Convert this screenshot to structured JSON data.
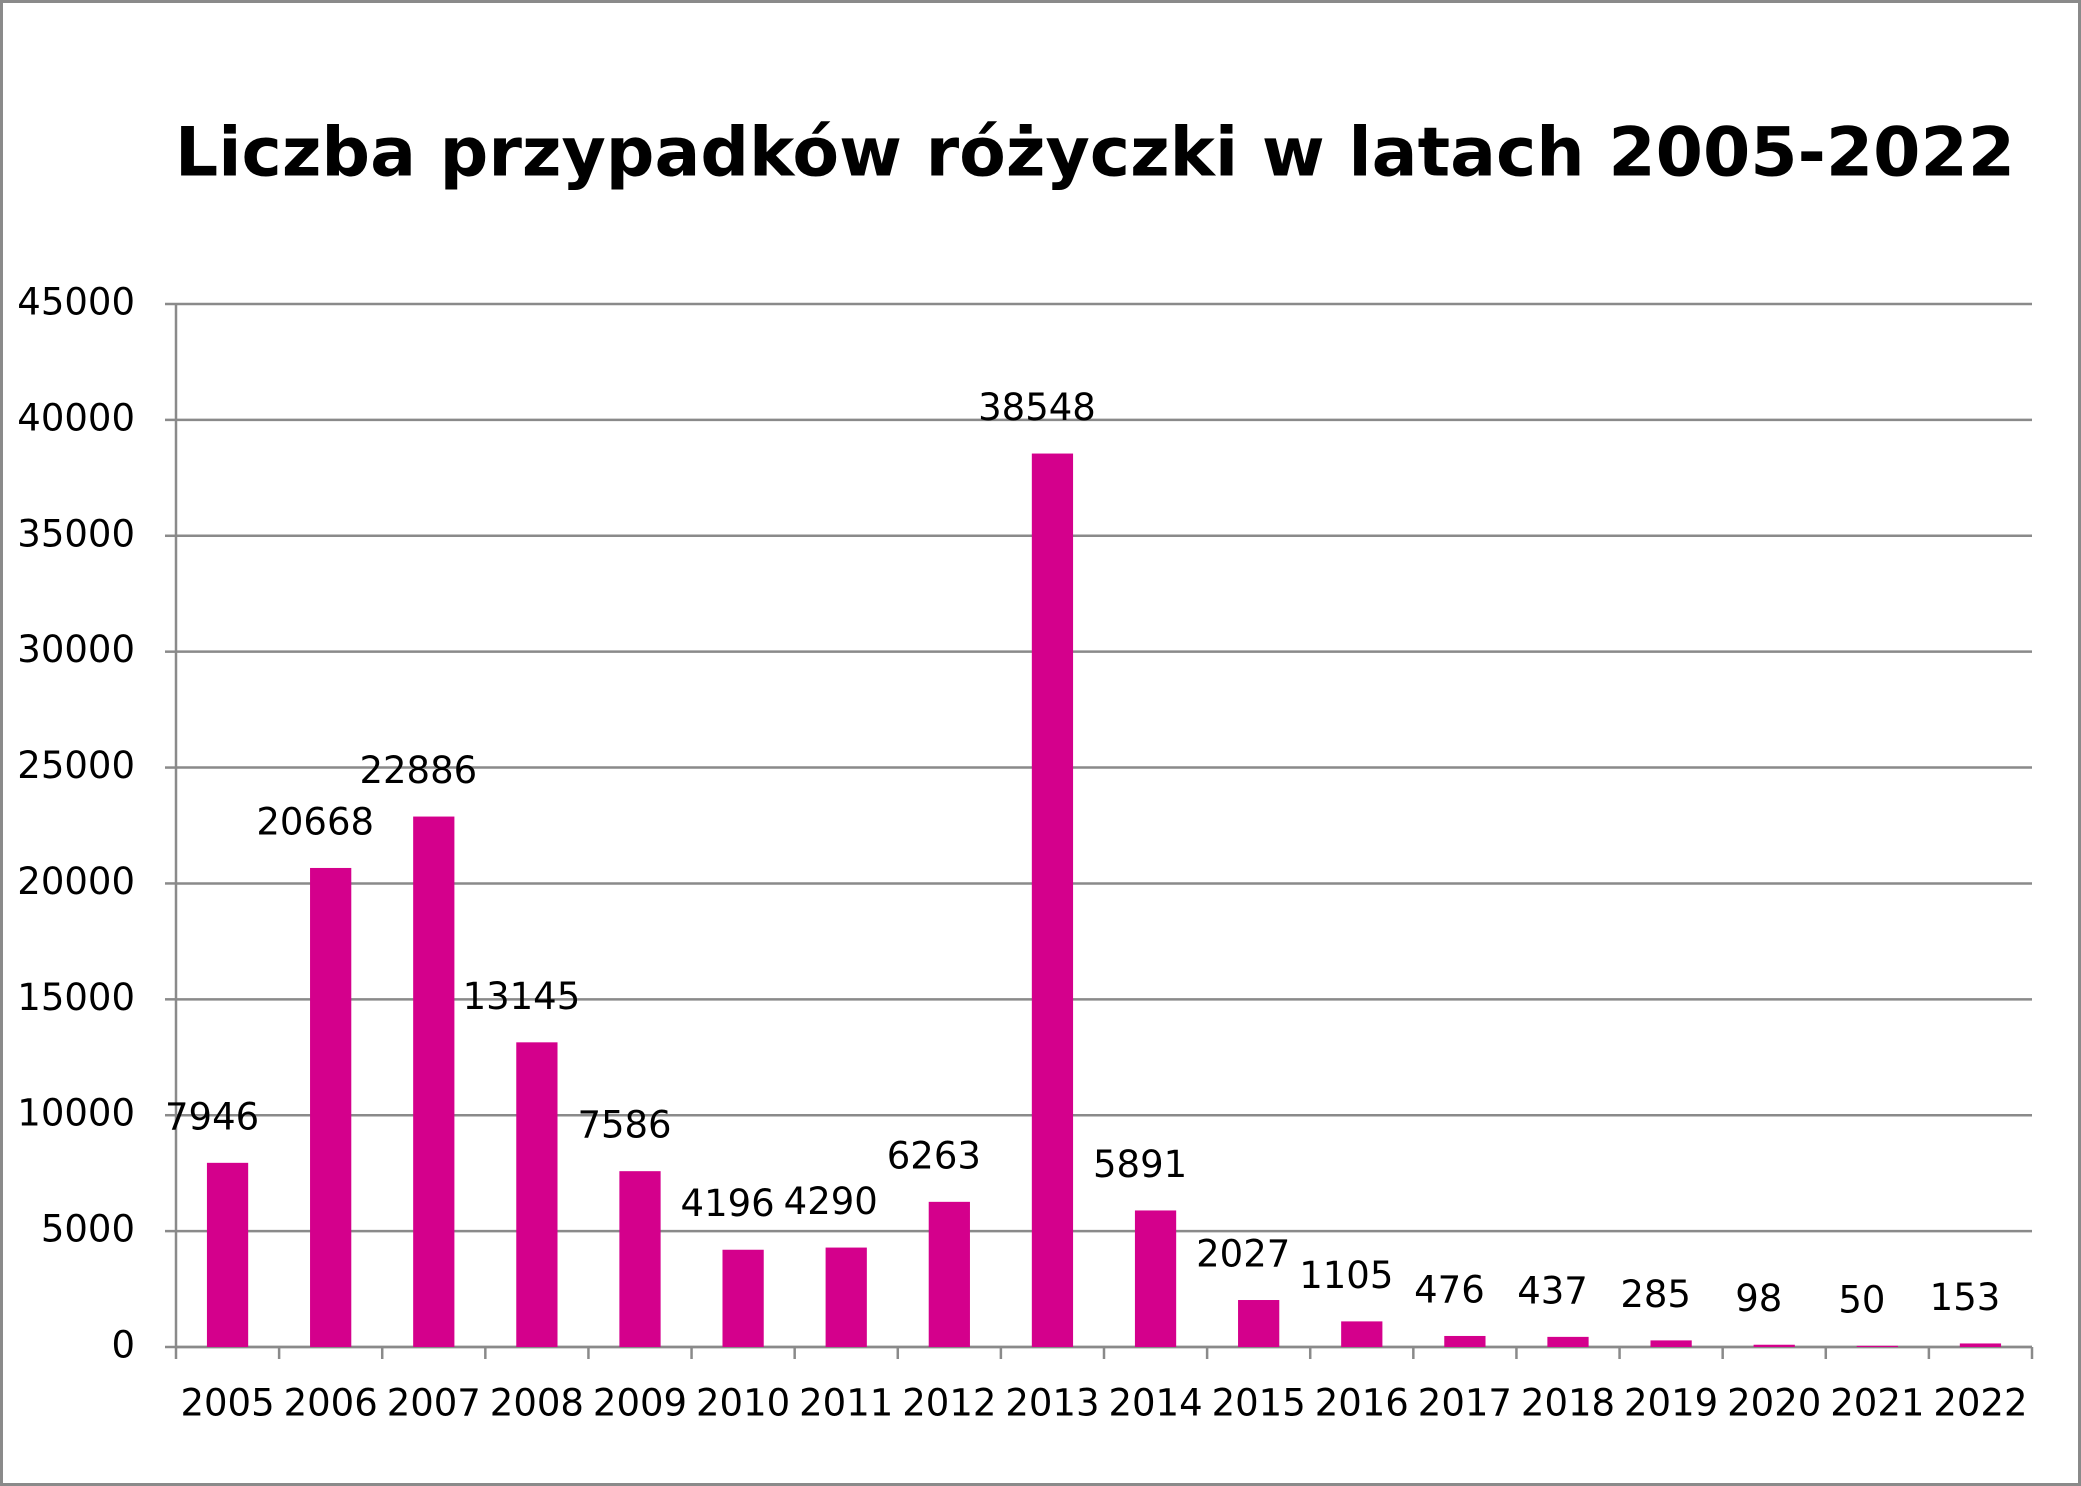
{
  "chart_data": {
    "type": "bar",
    "title": "Liczba przypadków różyczki w latach 2005-2022",
    "categories": [
      "2005",
      "2006",
      "2007",
      "2008",
      "2009",
      "2010",
      "2011",
      "2012",
      "2013",
      "2014",
      "2015",
      "2016",
      "2017",
      "2018",
      "2019",
      "2020",
      "2021",
      "2022"
    ],
    "values": [
      7946,
      20668,
      22886,
      13145,
      7586,
      4196,
      4290,
      6263,
      38548,
      5891,
      2027,
      1105,
      476,
      437,
      285,
      98,
      50,
      153
    ],
    "color": "#d4008c",
    "ylim": [
      0,
      45000
    ],
    "yticks": [
      0,
      5000,
      10000,
      15000,
      20000,
      25000,
      30000,
      35000,
      40000,
      45000
    ],
    "grid": true
  }
}
